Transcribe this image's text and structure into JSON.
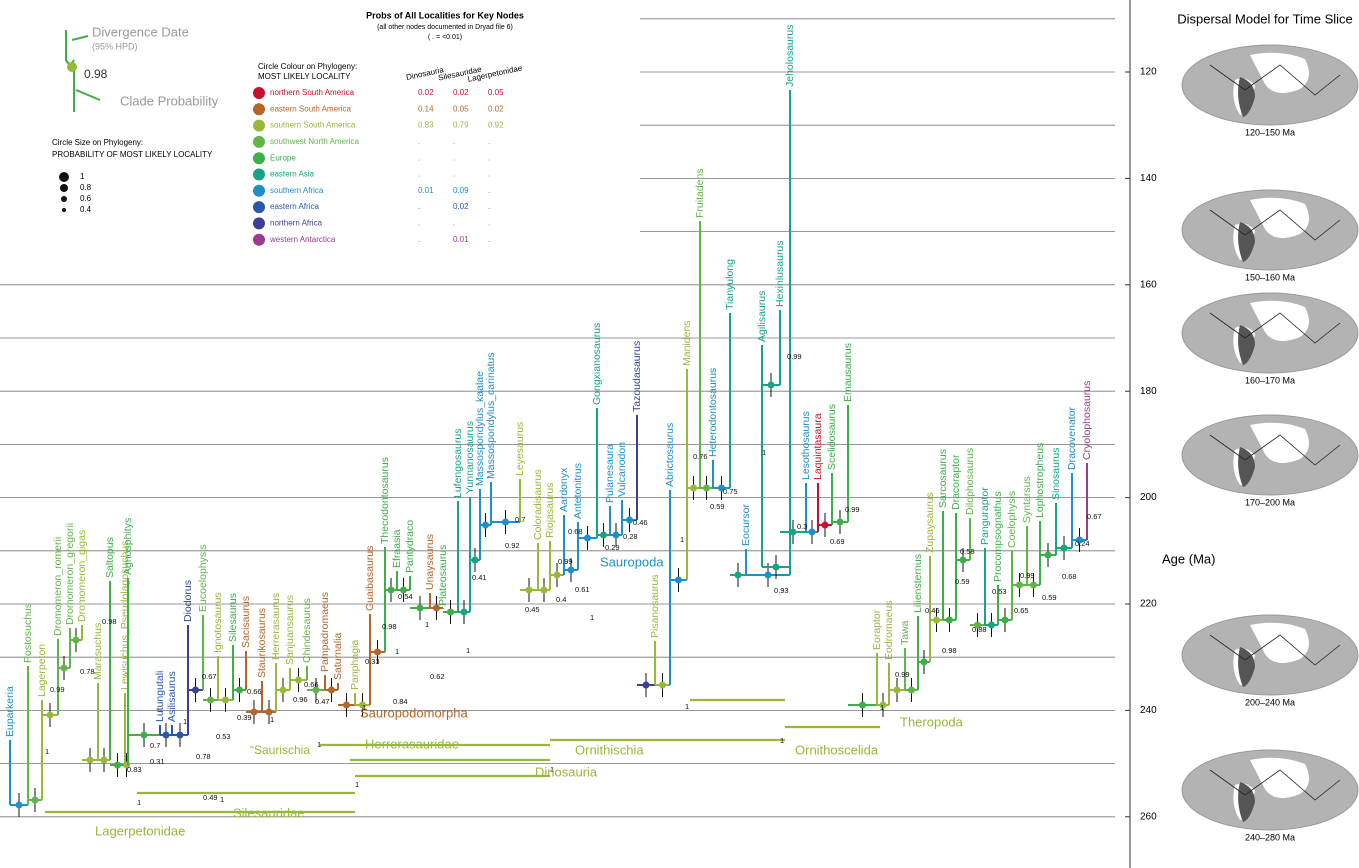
{
  "legend": {
    "divergence_date": "Divergence Date",
    "hpd": "(95% HPD)",
    "example_probability": "0.98",
    "clade_probability": "Clade Probability",
    "size_title": "Circle Size on Phylogeny:",
    "size_subtitle": "PROBABILITY OF MOST LIKELY LOCALITY",
    "sizes": [
      1.0,
      0.8,
      0.6,
      0.4
    ],
    "colour_title": "Circle Colour on Phylogeny:",
    "colour_subtitle": "MOST LIKELY LOCALITY"
  },
  "table": {
    "title": "Probs of All Localities for Key Nodes",
    "subtitle": "(all other nodes documented in Dryad file 6)",
    "note": "( . = <0.01)",
    "columns": [
      "Dinosauria",
      "Silesauridae",
      "Lagerpetonidae"
    ],
    "rows": [
      {
        "locality": "northern South America",
        "color": "#c8102e",
        "values": [
          "0.02",
          "0.02",
          "0.05"
        ]
      },
      {
        "locality": "eastern South America",
        "color": "#b4652a",
        "values": [
          "0.14",
          "0.05",
          "0.02"
        ]
      },
      {
        "locality": "southern South America",
        "color": "#98b83a",
        "values": [
          "0.83",
          "0.79",
          "0.92"
        ]
      },
      {
        "locality": "southwest North America",
        "color": "#62b44a",
        "values": [
          ".",
          ".",
          "."
        ]
      },
      {
        "locality": "Europe",
        "color": "#3cae4a",
        "values": [
          ".",
          ".",
          "."
        ]
      },
      {
        "locality": "eastern Asia",
        "color": "#16a584",
        "values": [
          ".",
          ".",
          "."
        ]
      },
      {
        "locality": "southern Africa",
        "color": "#1d8fc9",
        "values": [
          "0.01",
          "0.09",
          "."
        ]
      },
      {
        "locality": "eastern Africa",
        "color": "#2a58a8",
        "values": [
          ".",
          "0.02",
          "."
        ]
      },
      {
        "locality": "northern Africa",
        "color": "#3d3f97",
        "values": [
          ".",
          ".",
          "."
        ]
      },
      {
        "locality": "western Antarctica",
        "color": "#9a3b8e",
        "values": [
          ".",
          "0.01",
          "."
        ]
      }
    ]
  },
  "taxa": [
    {
      "name": "Euparkeria",
      "color": "#1d8fc9"
    },
    {
      "name": "Postosuchus",
      "color": "#62b44a"
    },
    {
      "name": "Lagerpeton",
      "color": "#98b83a"
    },
    {
      "name": "Dromomeron_romerii",
      "color": "#62b44a"
    },
    {
      "name": "Dromomeron_gregorii",
      "color": "#62b44a"
    },
    {
      "name": "Dromomeron_gigas",
      "color": "#98b83a"
    },
    {
      "name": "Marasuchus",
      "color": "#98b83a"
    },
    {
      "name": "Saltopus",
      "color": "#3cae4a"
    },
    {
      "name": "Lewisuchus_Pseudolagosuchus",
      "color": "#98b83a"
    },
    {
      "name": "Agnosphitys",
      "color": "#3cae4a"
    },
    {
      "name": "Lutungutali",
      "color": "#2a58a8"
    },
    {
      "name": "Asilisaurus",
      "color": "#2a58a8"
    },
    {
      "name": "Diodorus",
      "color": "#3d3f97"
    },
    {
      "name": "Eucoelophysis",
      "color": "#62b44a"
    },
    {
      "name": "Ignotosaurus",
      "color": "#98b83a"
    },
    {
      "name": "Silesaurus",
      "color": "#3cae4a"
    },
    {
      "name": "Sacisaurus",
      "color": "#b4652a"
    },
    {
      "name": "Staurikosaurus",
      "color": "#b4652a"
    },
    {
      "name": "Herrerasaurus",
      "color": "#98b83a"
    },
    {
      "name": "Sanjuansaurus",
      "color": "#98b83a"
    },
    {
      "name": "Chindesaurus",
      "color": "#62b44a"
    },
    {
      "name": "Pampadromaeus",
      "color": "#b4652a"
    },
    {
      "name": "Saturnalia",
      "color": "#b4652a"
    },
    {
      "name": "Panphagia",
      "color": "#98b83a"
    },
    {
      "name": "Guaibasaurus",
      "color": "#b4652a"
    },
    {
      "name": "Thecodontosaurus",
      "color": "#3cae4a"
    },
    {
      "name": "Efraasia",
      "color": "#3cae4a"
    },
    {
      "name": "Pantydraco",
      "color": "#3cae4a"
    },
    {
      "name": "Unaysaurus",
      "color": "#b4652a"
    },
    {
      "name": "Plateosaurus",
      "color": "#3cae4a"
    },
    {
      "name": "Lufengosaurus",
      "color": "#16a584"
    },
    {
      "name": "Yunnanosaurus",
      "color": "#16a584"
    },
    {
      "name": "Massospondylus_kaalae",
      "color": "#1d8fc9"
    },
    {
      "name": "Massospondylus_carinatus",
      "color": "#1d8fc9"
    },
    {
      "name": "Leyesaurus",
      "color": "#98b83a"
    },
    {
      "name": "Coloradisaurus",
      "color": "#98b83a"
    },
    {
      "name": "Riojasaurus",
      "color": "#98b83a"
    },
    {
      "name": "Aardonyx",
      "color": "#1d8fc9"
    },
    {
      "name": "Antetonitrus",
      "color": "#1d8fc9"
    },
    {
      "name": "Gongxianosaurus",
      "color": "#16a584"
    },
    {
      "name": "Pulanesaura",
      "color": "#1d8fc9"
    },
    {
      "name": "Vulcanodon",
      "color": "#1d8fc9"
    },
    {
      "name": "Tazoudasaurus",
      "color": "#3d3f97"
    },
    {
      "name": "Pisanosaurus",
      "color": "#98b83a"
    },
    {
      "name": "Abrictosaurus",
      "color": "#1d8fc9"
    },
    {
      "name": "Manidens",
      "color": "#98b83a"
    },
    {
      "name": "Fruitadens",
      "color": "#62b44a"
    },
    {
      "name": "Heterodontosaurus",
      "color": "#1d8fc9"
    },
    {
      "name": "Tianyulong",
      "color": "#16a584"
    },
    {
      "name": "Eocursor",
      "color": "#1d8fc9"
    },
    {
      "name": "Jeholosaurus",
      "color": "#16a584"
    },
    {
      "name": "Agilisaurus",
      "color": "#16a584"
    },
    {
      "name": "Hexinlusaurus",
      "color": "#16a584"
    },
    {
      "name": "Lesothosaurus",
      "color": "#1d8fc9"
    },
    {
      "name": "Laquintasaura",
      "color": "#c8102e"
    },
    {
      "name": "Scelidosaurus",
      "color": "#3cae4a"
    },
    {
      "name": "Emausaurus",
      "color": "#3cae4a"
    },
    {
      "name": "Eoraptor",
      "color": "#98b83a"
    },
    {
      "name": "Eodromaeus",
      "color": "#98b83a"
    },
    {
      "name": "Tawa",
      "color": "#62b44a"
    },
    {
      "name": "Liliensternus",
      "color": "#3cae4a"
    },
    {
      "name": "Zupaysaurus",
      "color": "#98b83a"
    },
    {
      "name": "Sarcosaurus",
      "color": "#3cae4a"
    },
    {
      "name": "Dracoraptor",
      "color": "#3cae4a"
    },
    {
      "name": "Dilophosaurus",
      "color": "#62b44a"
    },
    {
      "name": "Panguraptor",
      "color": "#16a584"
    },
    {
      "name": "Procompsognathus",
      "color": "#3cae4a"
    },
    {
      "name": "Coelophysis",
      "color": "#62b44a"
    },
    {
      "name": "Syntarsus",
      "color": "#62b44a"
    },
    {
      "name": "Lophostropheus",
      "color": "#3cae4a"
    },
    {
      "name": "Sinosaurus",
      "color": "#16a584"
    },
    {
      "name": "Dracovenator",
      "color": "#1d8fc9"
    },
    {
      "name": "Cryolophosaurus",
      "color": "#9a3b8e"
    }
  ],
  "node_probabilities": [
    "0.99",
    "0.78",
    "0.98",
    "1",
    "0.83",
    "0.31",
    "0.7",
    "0.78",
    "0.53",
    "0.67",
    "0.39",
    "0.66",
    "1",
    "0.49",
    "1",
    "1",
    "0.96",
    "0.66",
    "1",
    "0.47",
    "1",
    "0.33",
    "0.84",
    "1",
    "0.62",
    "1",
    "0.98",
    "0.54",
    "1",
    "0.41",
    "1",
    "0.45",
    "0.4",
    "0.61",
    "0.92",
    "0.7",
    "0.99",
    "0.68",
    "0.29",
    "0.28",
    "0.46",
    "1",
    "1",
    "0.76",
    "0.75",
    "0.59",
    "0.99",
    "1",
    "0.93",
    "0.3",
    "0.69",
    "0.99",
    "1",
    "1",
    "1",
    "0.99",
    "0.46",
    "0.98",
    "0.88",
    "0.58",
    "0.59",
    "0.53",
    "0.99",
    "0.65",
    "0.59",
    "0.68",
    "0.24",
    "0.67",
    "1",
    "1"
  ],
  "clades": [
    {
      "name": "Lagerpetonidae",
      "color": "#98b83a"
    },
    {
      "name": "Silesauridae",
      "color": "#98b83a"
    },
    {
      "name": "Dinosauria",
      "color": "#98b83a"
    },
    {
      "name": "“Saurischia",
      "color": "#98b83a"
    },
    {
      "name": "Herrerasauridae",
      "color": "#98b83a"
    },
    {
      "name": "Sauropodomorpha",
      "color": "#b4652a"
    },
    {
      "name": "Sauropoda",
      "color": "#1d8fc9"
    },
    {
      "name": "Ornithischia",
      "color": "#98b83a"
    },
    {
      "name": "Ornithoscelida",
      "color": "#98b83a"
    },
    {
      "name": "Theropoda",
      "color": "#98b83a"
    }
  ],
  "age_axis": {
    "label": "Age (Ma)",
    "ticks": [
      120,
      140,
      160,
      180,
      200,
      220,
      240,
      260
    ]
  },
  "maps": {
    "title": "Dispersal Model for Time Slice",
    "slices": [
      "120–150 Ma",
      "150–160 Ma",
      "160–170 Ma",
      "170–200 Ma",
      "200–240 Ma",
      "240–280 Ma"
    ]
  }
}
